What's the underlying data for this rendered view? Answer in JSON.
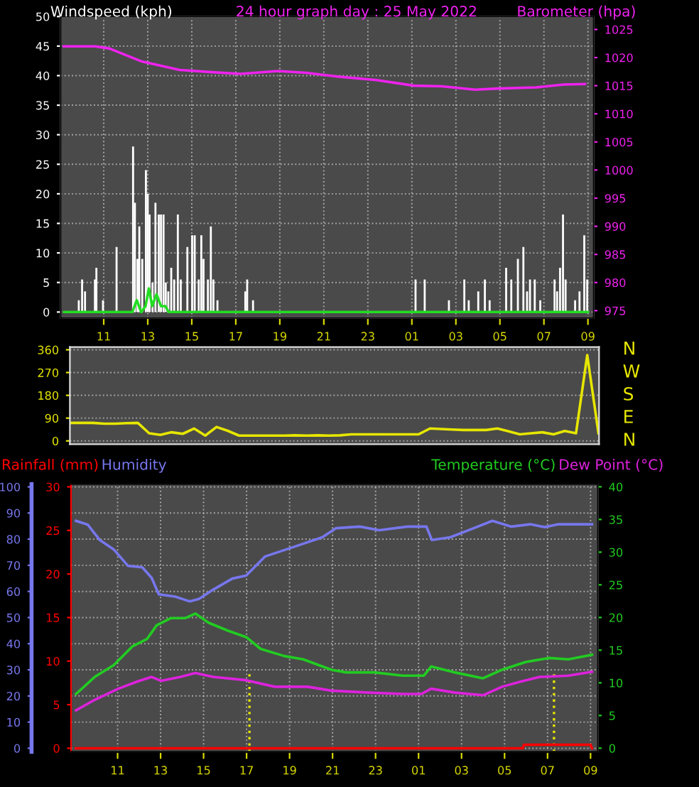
{
  "chart_data": [
    {
      "type": "bar",
      "title": "24 hour graph day : 25 May 2022",
      "ylabel": "Windspeed (kph)",
      "y2label": "Barometer (hpa)",
      "xlim": [
        "2022-05-24T09:03",
        "2022-05-25T09:15"
      ],
      "xticks": [
        {
          "value": "2022-05-24T11:00",
          "label": "11"
        },
        {
          "value": "2022-05-24T13:00",
          "label": "13"
        },
        {
          "value": "2022-05-24T15:00",
          "label": "15"
        },
        {
          "value": "2022-05-24T17:00",
          "label": "17"
        },
        {
          "value": "2022-05-24T19:00",
          "label": "19"
        },
        {
          "value": "2022-05-24T21:00",
          "label": "21"
        },
        {
          "value": "2022-05-24T23:00",
          "label": "23"
        },
        {
          "value": "2022-05-25T01:00",
          "label": "01"
        },
        {
          "value": "2022-05-25T03:00",
          "label": "03"
        },
        {
          "value": "2022-05-25T05:00",
          "label": "05"
        },
        {
          "value": "2022-05-25T07:00",
          "label": "07"
        },
        {
          "value": "2022-05-25T09:00",
          "label": "09"
        }
      ],
      "ylim": [
        -1,
        50
      ],
      "yticks": [
        0,
        5,
        10,
        15,
        20,
        25,
        30,
        35,
        40,
        45,
        50
      ],
      "y2lim": [
        973.7,
        1027.3
      ],
      "y2ticks": [
        975,
        980,
        985,
        990,
        995,
        1000,
        1005,
        1010,
        1015,
        1020,
        1025
      ],
      "grid": true,
      "series": [
        {
          "color": "#ffffff",
          "x": [
            "2022-05-24T09:52",
            "2022-05-24T10:01",
            "2022-05-24T10:09",
            "2022-05-24T10:36",
            "2022-05-24T10:40",
            "2022-05-24T10:58",
            "2022-05-24T11:35",
            "2022-05-24T12:20",
            "2022-05-24T12:25",
            "2022-05-24T12:32",
            "2022-05-24T12:37",
            "2022-05-24T12:45",
            "2022-05-24T12:55",
            "2022-05-24T13:00",
            "2022-05-24T13:05",
            "2022-05-24T13:13",
            "2022-05-24T13:21",
            "2022-05-24T13:30",
            "2022-05-24T13:36",
            "2022-05-24T13:43",
            "2022-05-24T13:49",
            "2022-05-24T13:56",
            "2022-05-24T14:04",
            "2022-05-24T14:12",
            "2022-05-24T14:22",
            "2022-05-24T14:30",
            "2022-05-24T14:48",
            "2022-05-24T15:01",
            "2022-05-24T15:08",
            "2022-05-24T15:19",
            "2022-05-24T15:26",
            "2022-05-24T15:32",
            "2022-05-24T15:44",
            "2022-05-24T15:52",
            "2022-05-24T15:59",
            "2022-05-24T16:10",
            "2022-05-24T17:26",
            "2022-05-24T17:31",
            "2022-05-24T17:47",
            "2022-05-25T01:10",
            "2022-05-25T01:35",
            "2022-05-25T02:41",
            "2022-05-25T03:23",
            "2022-05-25T03:35",
            "2022-05-25T04:01",
            "2022-05-25T04:19",
            "2022-05-25T04:32",
            "2022-05-25T05:17",
            "2022-05-25T05:31",
            "2022-05-25T05:49",
            "2022-05-25T06:04",
            "2022-05-25T06:14",
            "2022-05-25T06:22",
            "2022-05-25T06:35",
            "2022-05-25T06:50",
            "2022-05-25T07:29",
            "2022-05-25T07:36",
            "2022-05-25T07:44",
            "2022-05-25T07:52",
            "2022-05-25T07:59",
            "2022-05-25T08:25",
            "2022-05-25T08:37",
            "2022-05-25T08:50",
            "2022-05-25T08:58"
          ],
          "values": [
            2,
            5.5,
            3.5,
            5.5,
            7.5,
            2,
            11,
            28,
            18.5,
            9,
            14.5,
            9,
            24,
            20,
            16.5,
            5,
            18.5,
            16.5,
            16.5,
            16.5,
            5,
            3.5,
            7.5,
            5.5,
            16.5,
            5.5,
            11,
            13,
            13,
            5.5,
            13,
            9,
            5.5,
            14.5,
            5.5,
            2,
            3.5,
            5.5,
            2,
            5.5,
            5.5,
            2,
            5.5,
            2,
            3.5,
            5.5,
            2,
            7.5,
            5.5,
            9,
            11,
            3.5,
            5.5,
            5.5,
            2,
            5.5,
            3.5,
            7.5,
            16.5,
            5.5,
            2,
            3.5,
            13,
            5.5
          ]
        },
        {
          "type": "line",
          "color": "#22dd22",
          "x": [
            "2022-05-24T09:12",
            "2022-05-24T12:18",
            "2022-05-24T12:30",
            "2022-05-24T12:42",
            "2022-05-24T12:54",
            "2022-05-24T13:03",
            "2022-05-24T13:12",
            "2022-05-24T13:24",
            "2022-05-24T13:36",
            "2022-05-24T13:48",
            "2022-05-24T13:57",
            "2022-05-25T09:00"
          ],
          "values": [
            0,
            0,
            2,
            0,
            1,
            4,
            1,
            3,
            1,
            1,
            0,
            0
          ]
        },
        {
          "type": "line",
          "axis": "y2",
          "color": "#ee22ee",
          "x": [
            "2022-05-24T09:11",
            "2022-05-24T10:37",
            "2022-05-24T11:16",
            "2022-05-24T12:44",
            "2022-05-24T14:27",
            "2022-05-24T15:56",
            "2022-05-24T17:13",
            "2022-05-24T18:55",
            "2022-05-24T20:12",
            "2022-05-24T21:41",
            "2022-05-24T23:24",
            "2022-05-25T01:06",
            "2022-05-25T02:22",
            "2022-05-25T03:52",
            "2022-05-25T04:56",
            "2022-05-25T06:38",
            "2022-05-25T07:55",
            "2022-05-25T08:52"
          ],
          "values": [
            1022,
            1022,
            1021.6,
            1019.3,
            1017.8,
            1017.4,
            1017.1,
            1017.6,
            1017.3,
            1016.6,
            1016,
            1015,
            1014.9,
            1014.3,
            1014.5,
            1014.7,
            1015.2,
            1015.3
          ]
        }
      ]
    },
    {
      "type": "line",
      "categories": [
        null,
        null,
        null,
        null,
        null,
        null,
        null,
        null,
        null,
        null,
        null,
        null,
        null,
        null,
        null,
        null,
        null,
        null,
        null,
        null,
        null,
        null,
        null,
        null,
        null,
        null,
        null,
        null,
        null,
        null,
        null,
        null,
        null,
        null,
        null,
        null,
        null,
        null,
        null,
        null,
        null,
        null,
        null,
        null,
        null,
        null,
        null,
        null
      ],
      "tick_labels": "y",
      "ylim": [
        -13,
        371
      ],
      "yticks": [
        0,
        90,
        180,
        270,
        360
      ],
      "grid": "y",
      "annotations": [
        "N",
        "W",
        "S",
        "E",
        "N"
      ],
      "series": [
        {
          "color": "#e6e600",
          "values": [
            71,
            71,
            71,
            68,
            68,
            70,
            71,
            30,
            24,
            34,
            28,
            49,
            21,
            55,
            40,
            21,
            21,
            21,
            21,
            21,
            22,
            21,
            22,
            21,
            22,
            26,
            26,
            26,
            26,
            26,
            26,
            26,
            49,
            47,
            45,
            43,
            43,
            43,
            49,
            38,
            26,
            30,
            34,
            26,
            39,
            30,
            339,
            30
          ]
        }
      ]
    },
    {
      "type": "line",
      "ylabel": "Humidity",
      "y2label": "Temperature (°C)",
      "y3label": "Rainfall (mm)",
      "xlim": [
        "2022-05-24T08:50",
        "2022-05-25T09:20"
      ],
      "xticks": [
        {
          "value": "2022-05-24T11:00",
          "label": "11"
        },
        {
          "value": "2022-05-24T13:00",
          "label": "13"
        },
        {
          "value": "2022-05-24T15:00",
          "label": "15"
        },
        {
          "value": "2022-05-24T17:00",
          "label": "17"
        },
        {
          "value": "2022-05-24T19:00",
          "label": "19"
        },
        {
          "value": "2022-05-24T21:00",
          "label": "21"
        },
        {
          "value": "2022-05-24T23:00",
          "label": "23"
        },
        {
          "value": "2022-05-25T01:00",
          "label": "01"
        },
        {
          "value": "2022-05-25T03:00",
          "label": "03"
        },
        {
          "value": "2022-05-25T05:00",
          "label": "05"
        },
        {
          "value": "2022-05-25T07:00",
          "label": "07"
        },
        {
          "value": "2022-05-25T09:00",
          "label": "09"
        }
      ],
      "ylim": [
        -1.4,
        101.1
      ],
      "yticks": [
        0,
        10,
        20,
        30,
        40,
        50,
        60,
        70,
        80,
        90,
        100
      ],
      "y2lim": [
        -0.57,
        40.43
      ],
      "y2ticks": [
        0,
        5,
        10,
        15,
        20,
        25,
        30,
        35,
        40
      ],
      "y3lim": [
        -0.42,
        30.33
      ],
      "y3ticks": [
        0,
        5,
        10,
        15,
        20,
        25,
        30
      ],
      "grid": true,
      "ref_lines": [
        {
          "axis": "x",
          "value": "2022-05-24T17:08",
          "color": "#e6e600",
          "line_style": "dotted"
        },
        {
          "axis": "x",
          "value": "2022-05-25T07:18",
          "color": "#e6e600",
          "line_style": "dotted"
        }
      ],
      "series": [
        {
          "color": "#7777ee",
          "x": [
            "2022-05-24T09:04",
            "2022-05-24T09:37",
            "2022-05-24T10:10",
            "2022-05-24T10:49",
            "2022-05-24T11:29",
            "2022-05-24T12:09",
            "2022-05-24T12:35",
            "2022-05-24T12:55",
            "2022-05-24T13:41",
            "2022-05-24T14:21",
            "2022-05-24T14:47",
            "2022-05-24T15:27",
            "2022-05-24T16:20",
            "2022-05-24T16:59",
            "2022-05-24T17:52",
            "2022-05-24T19:11",
            "2022-05-24T20:31",
            "2022-05-24T21:10",
            "2022-05-24T22:16",
            "2022-05-24T23:10",
            "2022-05-25T00:29",
            "2022-05-25T01:22",
            "2022-05-25T01:37",
            "2022-05-25T02:28",
            "2022-05-25T03:34",
            "2022-05-25T04:26",
            "2022-05-25T05:19",
            "2022-05-25T06:12",
            "2022-05-25T06:52",
            "2022-05-25T07:31",
            "2022-05-25T09:04"
          ],
          "values": [
            87,
            85.5,
            79.7,
            76.1,
            69.8,
            69.2,
            65.2,
            58.9,
            58,
            56.2,
            57.1,
            60.7,
            64.9,
            66.1,
            73.4,
            77,
            80.7,
            84.2,
            84.8,
            83.4,
            84.8,
            84.8,
            79.7,
            80.7,
            84.2,
            87,
            84.8,
            85.7,
            84.6,
            85.7,
            85.7
          ]
        },
        {
          "axis": "y3",
          "color": "#ff0000",
          "x": [
            "2022-05-24T09:04",
            "2022-05-25T05:51",
            "2022-05-25T05:54",
            "2022-05-25T09:00",
            "2022-05-25T09:04"
          ],
          "values": [
            0,
            0,
            0.4,
            0.4,
            0
          ]
        },
        {
          "axis": "y2",
          "color": "#22cc22",
          "x": [
            "2022-05-24T09:04",
            "2022-05-24T09:56",
            "2022-05-24T10:49",
            "2022-05-24T11:42",
            "2022-05-24T12:22",
            "2022-05-24T12:49",
            "2022-05-24T13:28",
            "2022-05-24T14:08",
            "2022-05-24T14:37",
            "2022-05-24T15:14",
            "2022-05-24T16:07",
            "2022-05-24T16:59",
            "2022-05-24T17:39",
            "2022-05-24T18:45",
            "2022-05-24T19:38",
            "2022-05-24T20:57",
            "2022-05-24T21:37",
            "2022-05-24T22:56",
            "2022-05-25T00:16",
            "2022-05-25T01:15",
            "2022-05-25T01:35",
            "2022-05-25T02:41",
            "2022-05-25T04:00",
            "2022-05-25T04:53",
            "2022-05-25T05:59",
            "2022-05-25T07:05",
            "2022-05-25T07:58",
            "2022-05-25T09:04"
          ],
          "values": [
            8.3,
            10.9,
            12.7,
            15.6,
            16.7,
            18.8,
            19.9,
            19.9,
            20.6,
            19.2,
            18,
            17,
            15.2,
            14.1,
            13.6,
            12,
            11.6,
            11.6,
            11.1,
            11.1,
            12.5,
            11.6,
            10.7,
            12,
            13.2,
            13.8,
            13.6,
            14.3
          ]
        },
        {
          "axis": "y2",
          "name": "Dew Point (°C)",
          "color": "#dd22dd",
          "x": [
            "2022-05-24T09:04",
            "2022-05-24T09:56",
            "2022-05-24T11:02",
            "2022-05-24T11:55",
            "2022-05-24T12:35",
            "2022-05-24T13:02",
            "2022-05-24T13:55",
            "2022-05-24T14:37",
            "2022-05-24T15:27",
            "2022-05-24T16:59",
            "2022-05-24T18:19",
            "2022-05-24T19:51",
            "2022-05-24T20:57",
            "2022-05-24T22:43",
            "2022-05-25T00:16",
            "2022-05-25T01:08",
            "2022-05-25T01:35",
            "2022-05-25T02:41",
            "2022-05-25T04:00",
            "2022-05-25T04:53",
            "2022-05-25T05:46",
            "2022-05-25T06:38",
            "2022-05-25T07:58",
            "2022-05-25T09:04"
          ],
          "values": [
            5.8,
            7.4,
            9.1,
            10.2,
            10.9,
            10.3,
            10.9,
            11.5,
            10.9,
            10.4,
            9.4,
            9.4,
            8.8,
            8.5,
            8.3,
            8.3,
            9.1,
            8.5,
            8.1,
            9.4,
            10.2,
            10.9,
            11.1,
            11.7
          ]
        }
      ]
    }
  ]
}
